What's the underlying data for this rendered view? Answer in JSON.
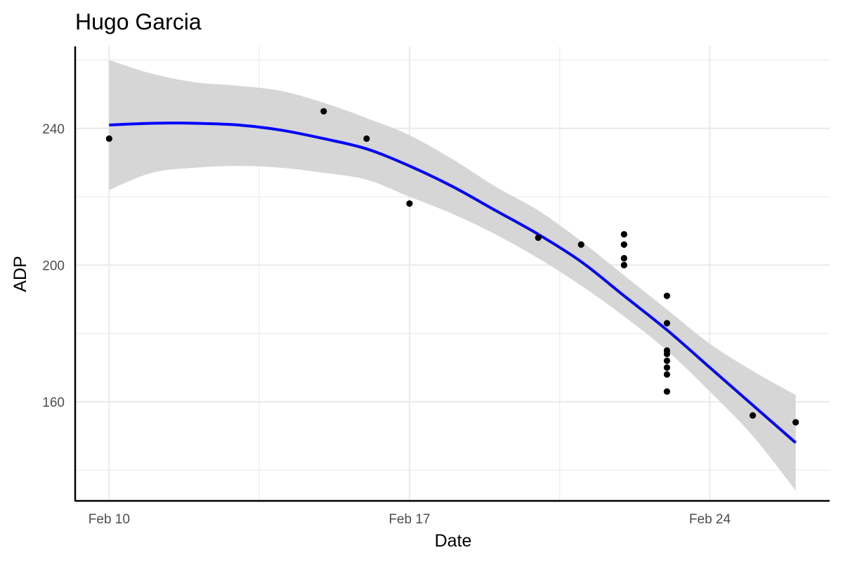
{
  "chart_data": {
    "type": "scatter",
    "title": "Hugo Garcia",
    "xlabel": "Date",
    "ylabel": "ADP",
    "x_ticks": [
      "Feb 10",
      "Feb 17",
      "Feb 24"
    ],
    "y_ticks": [
      160,
      200,
      240
    ],
    "xlim": [
      "2023-02-09 05:00",
      "2023-02-26 19:00"
    ],
    "ylim": [
      131,
      264
    ],
    "grid": true,
    "legend": "none",
    "series": [
      {
        "kind": "points",
        "color": "#000000",
        "points": [
          {
            "x": "2023-02-10",
            "y": 237
          },
          {
            "x": "2023-02-15",
            "y": 245
          },
          {
            "x": "2023-02-16",
            "y": 237
          },
          {
            "x": "2023-02-17",
            "y": 218
          },
          {
            "x": "2023-02-20",
            "y": 208
          },
          {
            "x": "2023-02-21",
            "y": 206
          },
          {
            "x": "2023-02-22",
            "y": 209
          },
          {
            "x": "2023-02-22",
            "y": 206
          },
          {
            "x": "2023-02-22",
            "y": 202
          },
          {
            "x": "2023-02-22",
            "y": 200
          },
          {
            "x": "2023-02-23",
            "y": 191
          },
          {
            "x": "2023-02-23",
            "y": 183
          },
          {
            "x": "2023-02-23",
            "y": 175
          },
          {
            "x": "2023-02-23",
            "y": 174
          },
          {
            "x": "2023-02-23",
            "y": 172
          },
          {
            "x": "2023-02-23",
            "y": 170
          },
          {
            "x": "2023-02-23",
            "y": 168
          },
          {
            "x": "2023-02-23",
            "y": 163
          },
          {
            "x": "2023-02-25",
            "y": 156
          },
          {
            "x": "2023-02-26",
            "y": 154
          }
        ]
      },
      {
        "kind": "smooth",
        "color": "#0000ff",
        "band_color": "#d3d3d3",
        "points": [
          {
            "x": "2023-02-10",
            "y": 241,
            "lo": 222,
            "hi": 260
          },
          {
            "x": "2023-02-11",
            "y": 241.5,
            "lo": 227,
            "hi": 256
          },
          {
            "x": "2023-02-12",
            "y": 241.5,
            "lo": 228.5,
            "hi": 253.5
          },
          {
            "x": "2023-02-13",
            "y": 241,
            "lo": 229,
            "hi": 252.5
          },
          {
            "x": "2023-02-14",
            "y": 239.5,
            "lo": 228.5,
            "hi": 251
          },
          {
            "x": "2023-02-15",
            "y": 237,
            "lo": 227,
            "hi": 247.5
          },
          {
            "x": "2023-02-16",
            "y": 234,
            "lo": 225,
            "hi": 243
          },
          {
            "x": "2023-02-17",
            "y": 229,
            "lo": 220,
            "hi": 238
          },
          {
            "x": "2023-02-18",
            "y": 223,
            "lo": 215,
            "hi": 231
          },
          {
            "x": "2023-02-19",
            "y": 216,
            "lo": 209,
            "hi": 223
          },
          {
            "x": "2023-02-20",
            "y": 209,
            "lo": 202,
            "hi": 216
          },
          {
            "x": "2023-02-21",
            "y": 201,
            "lo": 194,
            "hi": 207
          },
          {
            "x": "2023-02-22",
            "y": 191,
            "lo": 185,
            "hi": 197
          },
          {
            "x": "2023-02-23",
            "y": 181,
            "lo": 175,
            "hi": 187
          },
          {
            "x": "2023-02-24",
            "y": 170,
            "lo": 163,
            "hi": 177
          },
          {
            "x": "2023-02-25",
            "y": 159,
            "lo": 150,
            "hi": 169
          },
          {
            "x": "2023-02-26",
            "y": 148,
            "lo": 134,
            "hi": 162
          }
        ]
      }
    ]
  }
}
